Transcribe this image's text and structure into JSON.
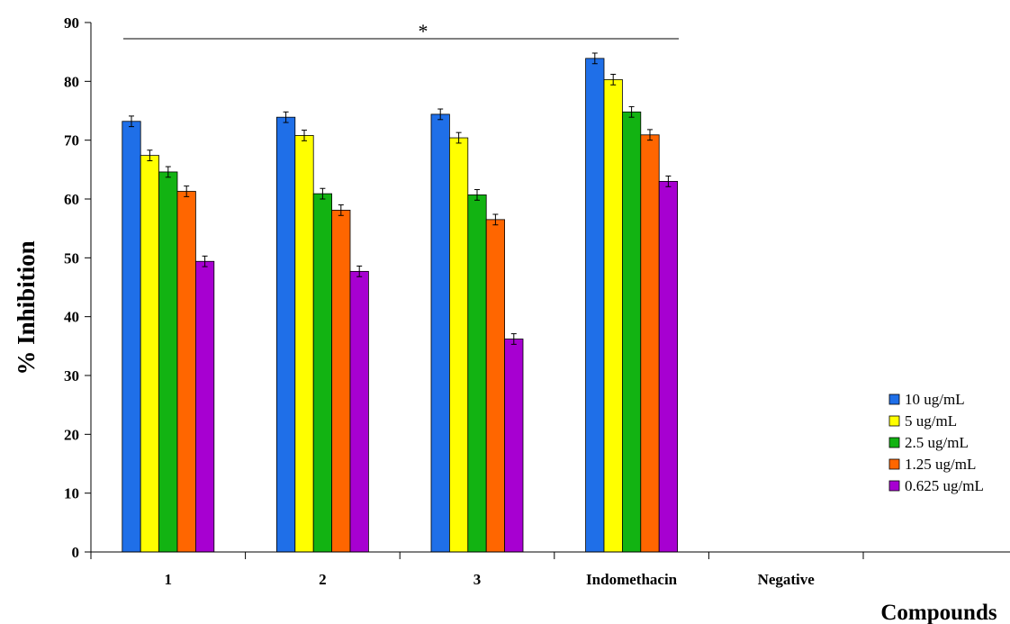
{
  "chart_data": {
    "type": "bar",
    "xlabel": "Compounds",
    "ylabel": "% Inhibition",
    "ylim": [
      0,
      90
    ],
    "ytick_step": 10,
    "grid": false,
    "legend_position": "bottom-right",
    "annotation": "*",
    "categories": [
      "1",
      "2",
      "3",
      "Indomethacin",
      "Negative"
    ],
    "series": [
      {
        "name": "10 ug/mL",
        "color": "#1f6fe8",
        "values": [
          73.2,
          73.9,
          74.4,
          83.9,
          null
        ],
        "errors": [
          0.9,
          0.9,
          0.9,
          0.9,
          null
        ]
      },
      {
        "name": "5 ug/mL",
        "color": "#ffff00",
        "values": [
          67.4,
          70.8,
          70.4,
          80.3,
          null
        ],
        "errors": [
          0.9,
          0.9,
          0.9,
          0.9,
          null
        ]
      },
      {
        "name": "2.5 ug/mL",
        "color": "#12b312",
        "values": [
          64.6,
          60.9,
          60.7,
          74.8,
          null
        ],
        "errors": [
          0.9,
          0.9,
          0.9,
          0.9,
          null
        ]
      },
      {
        "name": "1.25 ug/mL",
        "color": "#ff6600",
        "values": [
          61.3,
          58.1,
          56.5,
          70.9,
          null
        ],
        "errors": [
          0.9,
          0.9,
          0.9,
          0.9,
          null
        ]
      },
      {
        "name": "0.625 ug/mL",
        "color": "#a700d1",
        "values": [
          49.4,
          47.7,
          36.2,
          63.0,
          null
        ],
        "errors": [
          0.9,
          0.9,
          0.9,
          0.9,
          null
        ]
      }
    ]
  }
}
